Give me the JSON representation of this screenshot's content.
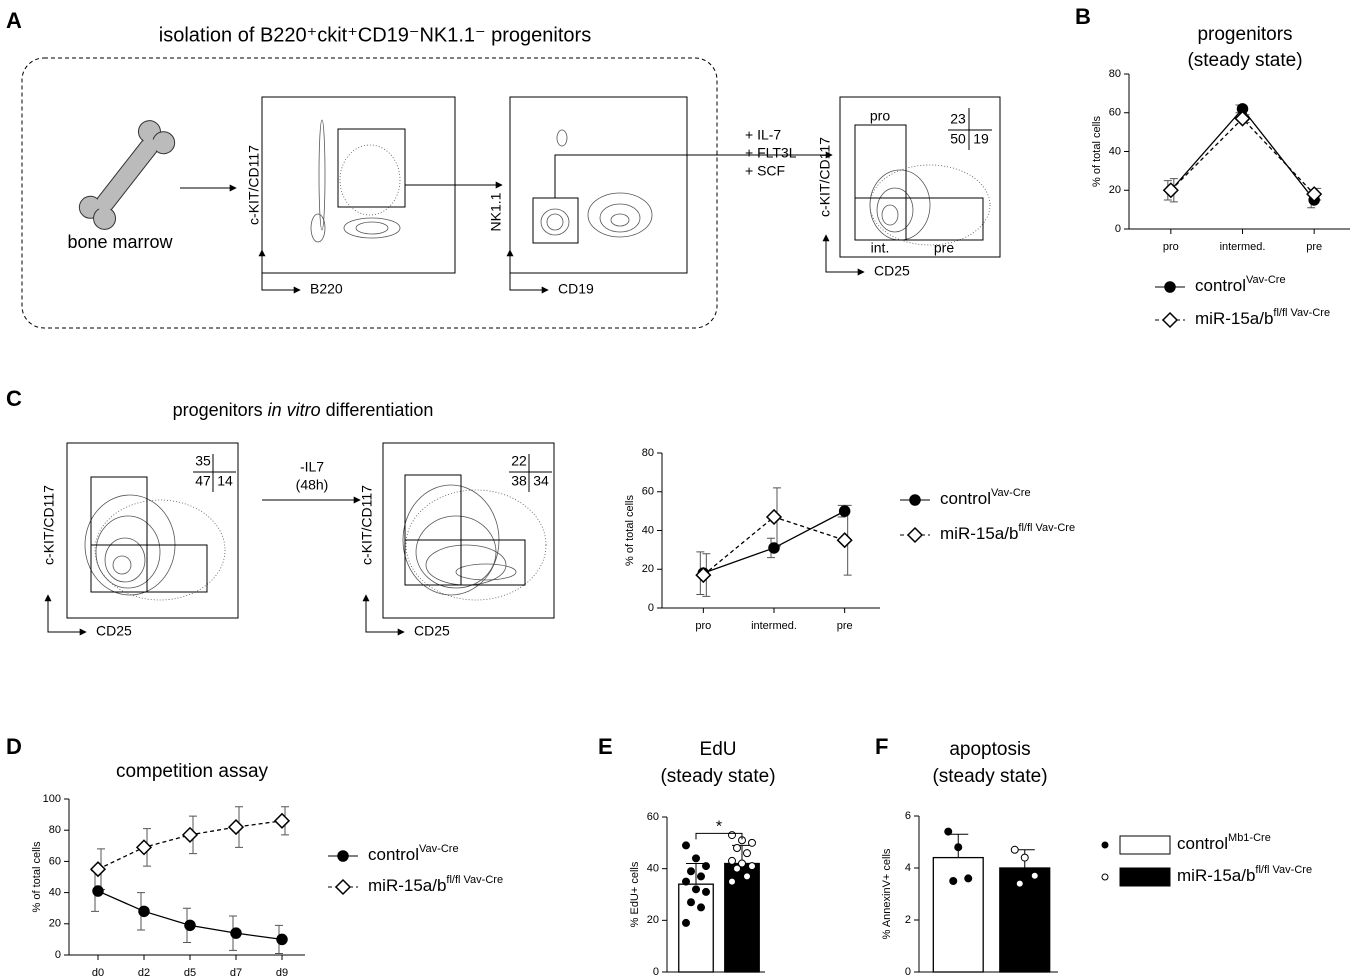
{
  "panel_letters": [
    "A",
    "B",
    "C",
    "D",
    "E",
    "F"
  ],
  "panel_a": {
    "title": "isolation of B220⁺ckit⁺CD19⁻NK1.1⁻ progenitors",
    "source_label": "bone marrow",
    "plots": [
      {
        "x_label": "B220",
        "y_label": "c-KIT/CD117"
      },
      {
        "x_label": "CD19",
        "y_label": "NK1.1"
      }
    ],
    "culture": [
      "+ IL-7",
      "+ FLT3L",
      "+ SCF"
    ],
    "result_plot": {
      "x_label": "CD25",
      "y_label": "c-KIT/CD117",
      "gates": [
        "pro",
        "int.",
        "pre"
      ],
      "quadrants": [
        "23",
        "50",
        "19"
      ]
    }
  },
  "panel_c": {
    "title": [
      "progenitors ",
      "in vitro",
      " differentiation"
    ],
    "treatment": [
      "-IL7",
      "(48h)"
    ],
    "plots": [
      {
        "x_label": "CD25",
        "y_label": "c-KIT/CD117",
        "quadrants": [
          "35",
          "47",
          "14"
        ]
      },
      {
        "x_label": "CD25",
        "y_label": "c-KIT/CD117",
        "quadrants": [
          "22",
          "38",
          "34"
        ]
      }
    ]
  },
  "chart_data": [
    {
      "type": "line",
      "title": [
        "progenitors",
        "(steady state)"
      ],
      "y_label": "% of total cells",
      "categories": [
        "pro",
        "intermed.",
        "pre"
      ],
      "ylim": [
        0,
        80
      ],
      "yticks": [
        0,
        20,
        40,
        60,
        80
      ],
      "series": [
        {
          "name": "control",
          "name_sup": "Vav-Cre",
          "color": "#000000",
          "marker": "circle",
          "dash": false,
          "values": [
            20,
            62,
            15
          ],
          "errors": [
            5,
            2,
            4
          ]
        },
        {
          "name": "miR-15a/b",
          "name_sup": "fl/fl Vav-Cre",
          "color": "#000000",
          "marker": "diamond",
          "dash": true,
          "values": [
            20,
            57,
            18
          ],
          "errors": [
            6,
            2,
            3
          ]
        }
      ]
    },
    {
      "type": "line",
      "y_label": "% of total cells",
      "categories": [
        "pro",
        "intermed.",
        "pre"
      ],
      "ylim": [
        0,
        80
      ],
      "yticks": [
        0,
        20,
        40,
        60,
        80
      ],
      "series": [
        {
          "name": "control",
          "name_sup": "Vav-Cre",
          "color": "#000000",
          "marker": "circle",
          "dash": false,
          "values": [
            18,
            31,
            50
          ],
          "errors": [
            11,
            5,
            3
          ]
        },
        {
          "name": "miR-15a/b",
          "name_sup": "fl/fl Vav-Cre",
          "color": "#000000",
          "marker": "diamond",
          "dash": true,
          "values": [
            17,
            47,
            35
          ],
          "errors": [
            11,
            15,
            18
          ]
        }
      ]
    },
    {
      "type": "line",
      "title": [
        "competition assay"
      ],
      "y_label": "% of total cells",
      "categories": [
        "d0",
        "d2",
        "d5",
        "d7",
        "d9"
      ],
      "ylim": [
        0,
        100
      ],
      "yticks": [
        0,
        20,
        40,
        60,
        80,
        100
      ],
      "series": [
        {
          "name": "control",
          "name_sup": "Vav-Cre",
          "color": "#000000",
          "marker": "circle",
          "dash": false,
          "values": [
            41,
            28,
            19,
            14,
            10
          ],
          "errors": [
            13,
            12,
            11,
            11,
            9
          ]
        },
        {
          "name": "miR-15a/b",
          "name_sup": "fl/fl Vav-Cre",
          "color": "#000000",
          "marker": "diamond",
          "dash": true,
          "values": [
            55,
            69,
            77,
            82,
            86
          ],
          "errors": [
            13,
            12,
            12,
            13,
            9
          ]
        }
      ]
    },
    {
      "type": "bar",
      "title": [
        "EdU",
        "(steady state)"
      ],
      "y_label": "% EdU+ cells",
      "annotation": "*",
      "ylim": [
        0,
        60
      ],
      "yticks": [
        0,
        20,
        40,
        60
      ],
      "series": [
        {
          "color": "#ffffff",
          "point_fill": "#000000",
          "value": 34,
          "error": 8,
          "points": [
            49,
            44,
            41,
            39,
            37,
            35,
            32,
            31,
            27,
            25,
            19
          ]
        },
        {
          "color": "#000000",
          "point_fill": "#ffffff",
          "value": 42,
          "error": 7,
          "points": [
            53,
            51,
            50,
            48,
            46,
            43,
            42,
            41,
            40,
            37,
            35
          ]
        }
      ]
    },
    {
      "type": "bar",
      "title": [
        "apoptosis",
        "(steady state)"
      ],
      "y_label": "% AnnexinV+ cells",
      "ylim": [
        0,
        6
      ],
      "yticks": [
        0,
        2,
        4,
        6
      ],
      "series": [
        {
          "name": "control",
          "name_sup": "Mb1-Cre",
          "color": "#ffffff",
          "point_fill": "#000000",
          "value": 4.4,
          "error": 0.9,
          "points": [
            5.4,
            4.8,
            3.6,
            3.5
          ]
        },
        {
          "name": "miR-15a/b",
          "name_sup": "fl/fl Vav-Cre",
          "color": "#000000",
          "point_fill": "#ffffff",
          "value": 4.0,
          "error": 0.7,
          "points": [
            4.7,
            4.4,
            3.7,
            3.4
          ]
        }
      ]
    }
  ]
}
